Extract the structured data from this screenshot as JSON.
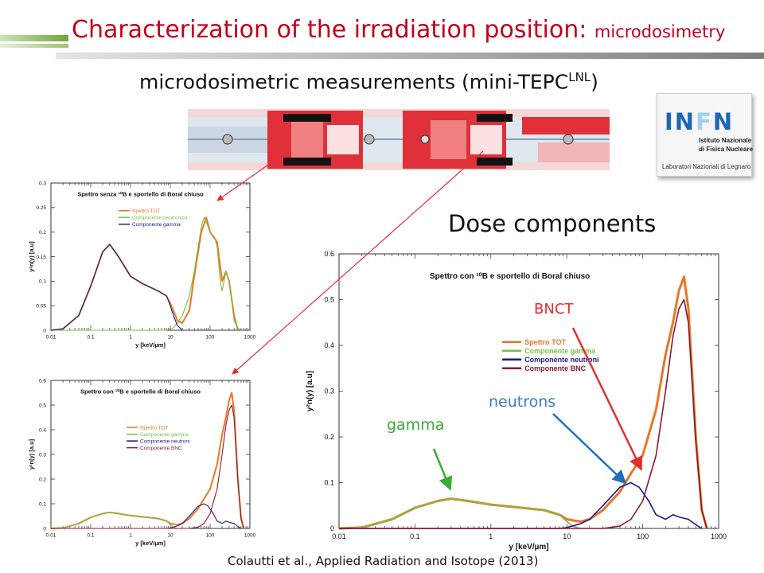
{
  "slide": {
    "title_main": "Characterization of the irradiation position:",
    "title_sub": "microdosimetry",
    "subtitle": "microdosimetric  measurements (mini-TEPC",
    "subtitle_sup": "LNL",
    "subtitle_end": ")",
    "dose_heading": "Dose components",
    "citation": "Colautti et al., Applied Radiation and Isotope (2013)",
    "colors": {
      "title": "#c0001c",
      "bar": "#6fa43a"
    }
  },
  "logo": {
    "letters": [
      "I",
      "N",
      "F",
      "N"
    ],
    "line1": "Istituto Nazionale",
    "line2": "di Fisica Nucleare",
    "line3": "Laboratori Nazionali di Legnaro"
  },
  "annotations": {
    "bnct": "BNCT",
    "neutrons": "neutrons",
    "gamma": "gamma"
  },
  "chart_data": [
    {
      "type": "line",
      "title": "Spettro senza ¹⁰B e sportello di Boral chiuso",
      "xlabel": "y [keV/µm]",
      "ylabel": "y²n(y) [a.u]",
      "xscale": "log",
      "xlim": [
        0.01,
        1000
      ],
      "ylim": [
        0,
        0.3
      ],
      "xticks": [
        "0.01",
        "0.1",
        "1",
        "10",
        "100",
        "1000"
      ],
      "yticks": [
        "0",
        "0.05",
        "0.1",
        "0.15",
        "0.2",
        "0.25",
        "0.3"
      ],
      "series": [
        {
          "name": "Spettro TOT",
          "color": "#e87722",
          "x": [
            0.01,
            0.02,
            0.05,
            0.1,
            0.2,
            0.3,
            0.5,
            1,
            2,
            5,
            8,
            10,
            12,
            15,
            20,
            30,
            40,
            60,
            80,
            100,
            150,
            200,
            250,
            300,
            400,
            500
          ],
          "values": [
            0.0,
            0.003,
            0.03,
            0.09,
            0.16,
            0.175,
            0.15,
            0.11,
            0.095,
            0.08,
            0.07,
            0.055,
            0.04,
            0.02,
            0.015,
            0.04,
            0.11,
            0.2,
            0.23,
            0.2,
            0.18,
            0.1,
            0.12,
            0.1,
            0.03,
            0.0
          ]
        },
        {
          "name": "Componente neutronica",
          "color": "#7ac143",
          "x": [
            0.01,
            0.1,
            1,
            8,
            12,
            15,
            20,
            30,
            40,
            50,
            60,
            70,
            80,
            100,
            130,
            150,
            180,
            200,
            250,
            300,
            350,
            400,
            500,
            600
          ],
          "values": [
            0,
            0,
            0,
            0,
            0.005,
            0.015,
            0.03,
            0.07,
            0.12,
            0.17,
            0.21,
            0.23,
            0.22,
            0.2,
            0.19,
            0.17,
            0.1,
            0.08,
            0.12,
            0.1,
            0.06,
            0.02,
            0.005,
            0
          ]
        },
        {
          "name": "Componente gamma",
          "color": "#1a1a8c",
          "x": [
            0.01,
            0.02,
            0.05,
            0.1,
            0.2,
            0.3,
            0.5,
            1,
            2,
            5,
            8,
            10,
            12,
            15,
            20
          ],
          "values": [
            0.0,
            0.003,
            0.03,
            0.09,
            0.16,
            0.175,
            0.15,
            0.11,
            0.095,
            0.08,
            0.07,
            0.05,
            0.03,
            0.01,
            0.0
          ]
        }
      ]
    },
    {
      "type": "line",
      "title": "Spettro con ¹⁰B e sportello di Boral chiuso",
      "xlabel": "y [keV/µm]",
      "ylabel": "y²n(y) [a.u]",
      "xscale": "log",
      "xlim": [
        0.01,
        1000
      ],
      "ylim": [
        0,
        0.6
      ],
      "xticks": [
        "0.01",
        "0.1",
        "1",
        "10",
        "100",
        "1000"
      ],
      "yticks": [
        "0",
        "0.1",
        "0.2",
        "0.3",
        "0.4",
        "0.5",
        "0.6"
      ],
      "series": [
        {
          "name": "Spettro TOT",
          "color": "#e87722",
          "x": [
            0.01,
            0.02,
            0.05,
            0.1,
            0.2,
            0.3,
            0.5,
            1,
            2,
            5,
            8,
            10,
            15,
            20,
            30,
            50,
            70,
            100,
            150,
            200,
            250,
            300,
            350,
            400,
            500,
            600,
            700
          ],
          "values": [
            0.0,
            0.002,
            0.02,
            0.045,
            0.06,
            0.065,
            0.06,
            0.052,
            0.047,
            0.04,
            0.03,
            0.02,
            0.015,
            0.02,
            0.04,
            0.08,
            0.12,
            0.16,
            0.26,
            0.38,
            0.45,
            0.52,
            0.55,
            0.48,
            0.2,
            0.04,
            0.0
          ]
        },
        {
          "name": "Componente gamma",
          "color": "#7ac143",
          "x": [
            0.01,
            0.02,
            0.05,
            0.1,
            0.2,
            0.3,
            0.5,
            1,
            2,
            5,
            8,
            10,
            12,
            15
          ],
          "values": [
            0.0,
            0.002,
            0.02,
            0.045,
            0.06,
            0.065,
            0.06,
            0.052,
            0.047,
            0.04,
            0.03,
            0.015,
            0.005,
            0.0
          ]
        },
        {
          "name": "Componente neutroni",
          "color": "#1a1a8c",
          "x": [
            0.01,
            8,
            10,
            15,
            20,
            30,
            50,
            70,
            90,
            120,
            150,
            200,
            250,
            300,
            400,
            500,
            600
          ],
          "values": [
            0,
            0,
            0.002,
            0.01,
            0.02,
            0.05,
            0.09,
            0.1,
            0.09,
            0.06,
            0.03,
            0.02,
            0.03,
            0.025,
            0.02,
            0.008,
            0
          ]
        },
        {
          "name": "Componente BNC",
          "color": "#8b1a2b",
          "x": [
            0.01,
            30,
            50,
            70,
            100,
            150,
            200,
            250,
            300,
            350,
            400,
            500,
            600,
            700
          ],
          "values": [
            0,
            0,
            0.005,
            0.02,
            0.06,
            0.16,
            0.3,
            0.42,
            0.48,
            0.5,
            0.45,
            0.19,
            0.04,
            0
          ]
        }
      ]
    }
  ]
}
